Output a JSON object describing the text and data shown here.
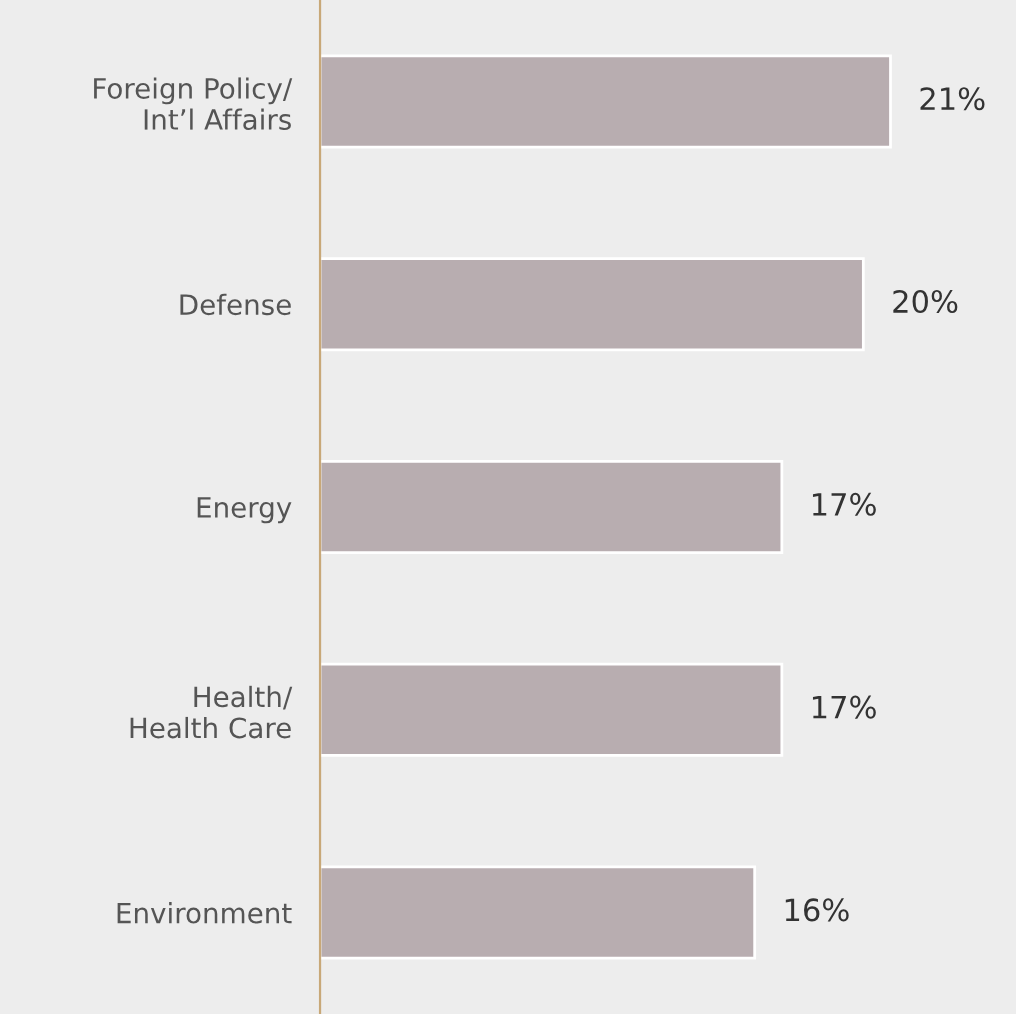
{
  "chart_data": {
    "type": "bar",
    "orientation": "horizontal",
    "categories": [
      "Foreign Policy/\nInt’l Affairs",
      "Defense",
      "Energy",
      "Health/\nHealth Care",
      "Environment"
    ],
    "values": [
      21,
      20,
      17,
      17,
      16
    ],
    "value_labels": [
      "21%",
      "20%",
      "17%",
      "17%",
      "16%"
    ],
    "color": "#b8adb0",
    "grid": false,
    "legend": false
  }
}
